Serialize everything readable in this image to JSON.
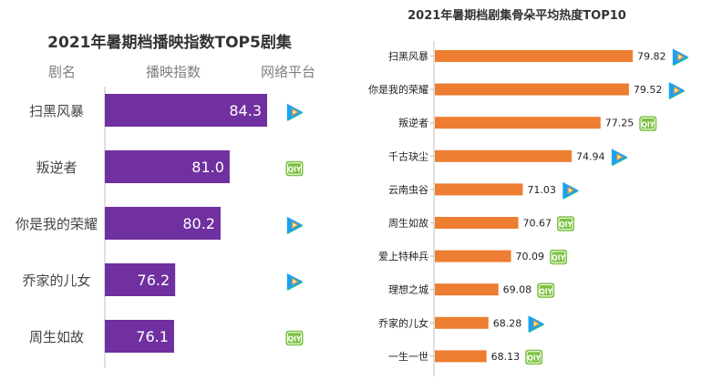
{
  "colors": {
    "left_bar": "#7030a0",
    "right_bar": "#ed7d31",
    "tencent_blue": "#1ea0f2",
    "tencent_green": "#21c18a",
    "tencent_orange": "#ff9f1a",
    "iqiyi_green": "#7cc242"
  },
  "chart_data": [
    {
      "type": "bar",
      "orientation": "horizontal",
      "title": "2021年暑期档播映指数TOP5剧集",
      "headers": [
        "剧名",
        "播映指数",
        "网络平台"
      ],
      "categories": [
        "扫黑风暴",
        "叛逆者",
        "你是我的荣耀",
        "乔家的儿女",
        "周生如故"
      ],
      "values": [
        84.3,
        81.0,
        80.2,
        76.2,
        76.1
      ],
      "value_labels": [
        "84.3",
        "81.0",
        "80.2",
        "76.2",
        "76.1"
      ],
      "platforms": [
        "tencent-video",
        "iqiyi",
        "tencent-video",
        "tencent-video",
        "iqiyi"
      ],
      "xlim": [
        70,
        86
      ]
    },
    {
      "type": "bar",
      "orientation": "horizontal",
      "title": "2021年暑期档剧集骨朵平均热度TOP10",
      "categories": [
        "扫黑风暴",
        "你是我的荣耀",
        "叛逆者",
        "千古玦尘",
        "云南虫谷",
        "周生如故",
        "爱上特种兵",
        "理想之城",
        "乔家的儿女",
        "一生一世"
      ],
      "values": [
        79.82,
        79.52,
        77.25,
        74.94,
        71.03,
        70.67,
        70.09,
        69.08,
        68.28,
        68.13
      ],
      "value_labels": [
        "79.82",
        "79.52",
        "77.25",
        "74.94",
        "71.03",
        "70.67",
        "70.09",
        "69.08",
        "68.28",
        "68.13"
      ],
      "platforms": [
        "tencent-video",
        "tencent-video",
        "iqiyi",
        "tencent-video",
        "tencent-video",
        "iqiyi",
        "iqiyi",
        "iqiyi",
        "tencent-video",
        "iqiyi"
      ],
      "xlim": [
        64,
        80
      ]
    }
  ]
}
